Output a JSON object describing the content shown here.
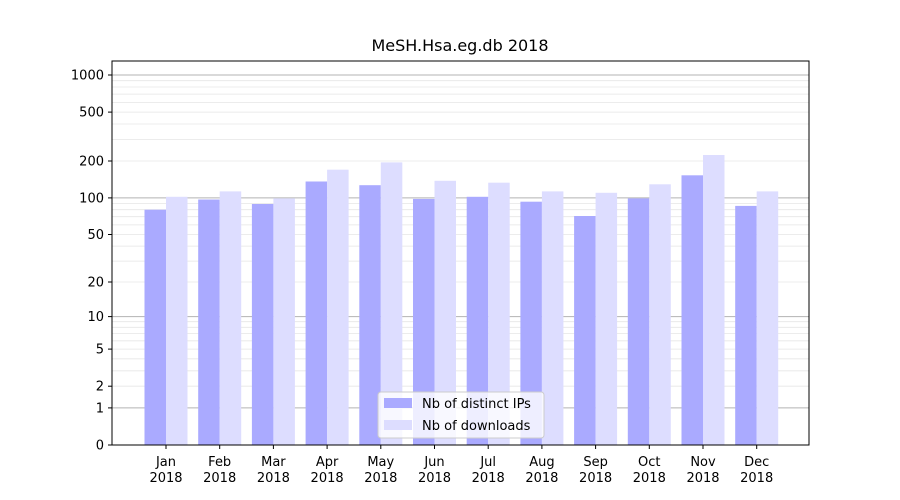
{
  "chart_data": {
    "type": "bar",
    "title": "MeSH.Hsa.eg.db 2018",
    "xlabel": "",
    "ylabel": "",
    "yscale": "log1p",
    "ylim": [
      0,
      1300
    ],
    "yticks": [
      0,
      1,
      2,
      5,
      10,
      20,
      50,
      100,
      200,
      500,
      1000
    ],
    "categories": [
      "Jan\n2018",
      "Feb\n2018",
      "Mar\n2018",
      "Apr\n2018",
      "May\n2018",
      "Jun\n2018",
      "Jul\n2018",
      "Aug\n2018",
      "Sep\n2018",
      "Oct\n2018",
      "Nov\n2018",
      "Dec\n2018"
    ],
    "series": [
      {
        "name": "Nb of distinct IPs",
        "color": "#aaaaff",
        "values": [
          80,
          97,
          89,
          136,
          127,
          98,
          102,
          93,
          71,
          99,
          153,
          86
        ]
      },
      {
        "name": "Nb of downloads",
        "color": "#ddddff",
        "values": [
          102,
          113,
          99,
          170,
          195,
          138,
          133,
          113,
          110,
          129,
          224,
          113
        ]
      }
    ],
    "grid": true,
    "legend_position": "bottom-center"
  }
}
